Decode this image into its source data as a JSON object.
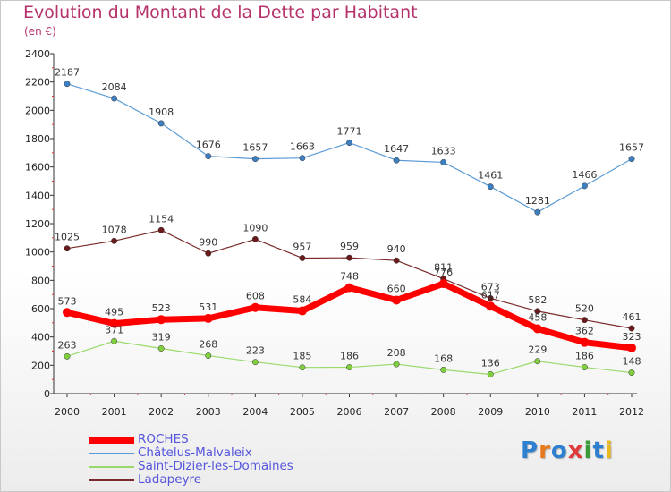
{
  "title": "Evolution du Montant de la Dette par Habitant",
  "subtitle": "(en €)",
  "logo": {
    "text": "Proxiti",
    "letters": [
      {
        "ch": "P",
        "color": "#2f7fd0"
      },
      {
        "ch": "r",
        "color": "#e87a1e"
      },
      {
        "ch": "o",
        "color": "#2f7fd0"
      },
      {
        "ch": "x",
        "color": "#e03a3a"
      },
      {
        "ch": "i",
        "color": "#3a9a3a"
      },
      {
        "ch": "t",
        "color": "#2f7fd0"
      },
      {
        "ch": "i",
        "color": "#e8b81e"
      }
    ]
  },
  "chart_data": {
    "type": "line",
    "categories": [
      "2000",
      "2001",
      "2002",
      "2003",
      "2004",
      "2005",
      "2006",
      "2007",
      "2008",
      "2009",
      "2010",
      "2011",
      "2012"
    ],
    "ylim": [
      0,
      2400
    ],
    "yticks": [
      0,
      200,
      400,
      600,
      800,
      1000,
      1200,
      1400,
      1600,
      1800,
      2000,
      2200,
      2400
    ],
    "grid": false,
    "legend_position": "bottom-left",
    "series": [
      {
        "name": "ROCHES",
        "color": "#ff0000",
        "marker": "#ff0000",
        "width": 7,
        "values": [
          573,
          495,
          523,
          531,
          608,
          584,
          748,
          660,
          776,
          617,
          458,
          362,
          323
        ]
      },
      {
        "name": "Châtelus-Malvaleix",
        "color": "#5b9bd5",
        "marker": "#3d7fc0",
        "width": 1.2,
        "values": [
          2187,
          2084,
          1908,
          1676,
          1657,
          1663,
          1771,
          1647,
          1633,
          1461,
          1281,
          1466,
          1657
        ]
      },
      {
        "name": "Saint-Dizier-les-Domaines",
        "color": "#99d96a",
        "marker": "#7fcf3f",
        "width": 1.2,
        "values": [
          263,
          371,
          319,
          268,
          223,
          185,
          186,
          208,
          168,
          136,
          229,
          186,
          148
        ]
      },
      {
        "name": "Ladapeyre",
        "color": "#7a2a2a",
        "marker": "#6a1a1a",
        "width": 1.2,
        "values": [
          1025,
          1078,
          1154,
          990,
          1090,
          957,
          959,
          940,
          811,
          673,
          582,
          520,
          461
        ]
      }
    ]
  }
}
